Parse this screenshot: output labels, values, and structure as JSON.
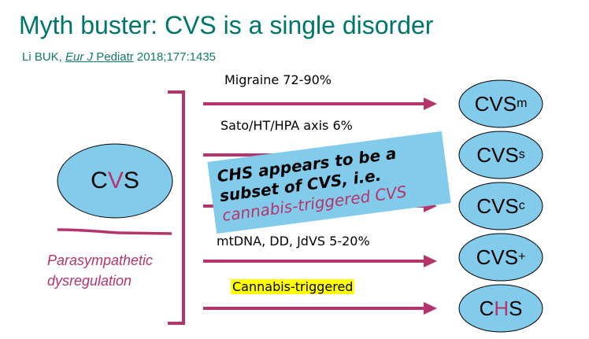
{
  "title": "Myth buster: CVS is a single disorder",
  "citation": {
    "authors": "Li BUK,",
    "journal_italic": "Eur J",
    "journal_rest": "Pediatr",
    "details": "2018;177:1435"
  },
  "source": {
    "left_C": "C",
    "left_V": "V",
    "left_S": "S"
  },
  "side_note": "Parasympathetic dysregulation",
  "pathways": [
    {
      "label": "Migraine 72-90%",
      "target_base": "CVS",
      "target_mod": "m",
      "mod_type": "sub"
    },
    {
      "label": "Sato/HT/HPA axis 6%",
      "target_base": "CVS",
      "target_mod": "s",
      "mod_type": "sub"
    },
    {
      "label": "",
      "target_base": "CVS",
      "target_mod": "c",
      "mod_type": "sub"
    },
    {
      "label": "mtDNA, DD, JdVS 5-20%",
      "target_base": "CVS",
      "target_mod": "+",
      "mod_type": "sup"
    },
    {
      "label": "Cannabis-triggered",
      "target_C": "C",
      "target_H": "H",
      "target_S": "S"
    }
  ],
  "callout": {
    "line1": "CHS appears to be a",
    "line2": "subset of CVS, i.e.",
    "line3": "cannabis-triggered CVS"
  },
  "colors": {
    "title": "#00766a",
    "accent": "#b5346c",
    "ellipse": "#83cbea",
    "highlight": "#ffff00"
  }
}
